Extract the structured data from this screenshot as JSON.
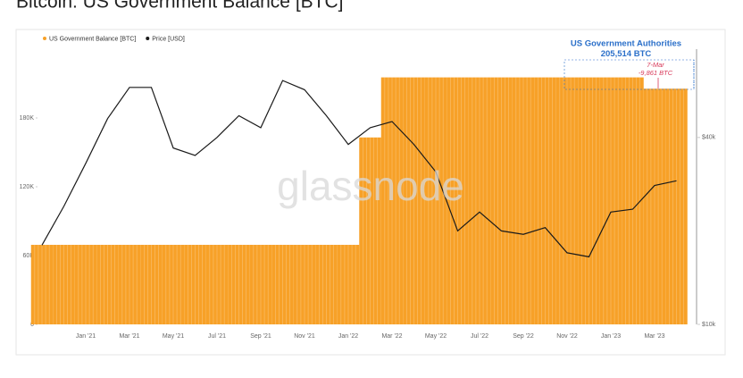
{
  "chart_data": {
    "type": "bar",
    "title": "Bitcoin: US Government Balance [BTC]",
    "watermark": "glassnode",
    "categories": [
      null,
      null,
      "Jan '21",
      null,
      "Mar '21",
      null,
      "May '21",
      null,
      "Jul '21",
      null,
      "Sep '21",
      null,
      "Nov '21",
      null,
      "Jan '22",
      null,
      "Mar '22",
      null,
      "May '22",
      null,
      "Jul '22",
      null,
      "Sep '22",
      null,
      "Nov '22",
      null,
      "Jan '23",
      null,
      "Mar '23",
      null
    ],
    "series": [
      {
        "name": "US Government Balance [BTC]",
        "type": "bar",
        "color": "#f7a128",
        "values": [
          69370,
          69370,
          69370,
          69370,
          69370,
          69370,
          69370,
          69370,
          69370,
          69370,
          69370,
          69370,
          69370,
          69370,
          69370,
          163000,
          215375,
          215375,
          215375,
          215375,
          215375,
          215375,
          215375,
          215375,
          215375,
          215375,
          215375,
          215375,
          205514,
          205514
        ]
      },
      {
        "name": "Price [USD]",
        "type": "line",
        "color": "#1a1a1a",
        "axis": "y2",
        "values": [
          18000,
          24000,
          33000,
          46000,
          58000,
          58000,
          37000,
          35000,
          40000,
          47000,
          43000,
          61000,
          57000,
          47000,
          38000,
          43000,
          45000,
          38000,
          31000,
          20000,
          23000,
          20000,
          19500,
          20500,
          17000,
          16500,
          23000,
          23500,
          28000,
          29000
        ]
      }
    ],
    "ylim": [
      0,
      240000
    ],
    "yticks": [
      0,
      {
        "value": 60000,
        "label": "60K"
      },
      {
        "value": 120000,
        "label": "120K"
      },
      {
        "value": 180000,
        "label": "180K"
      }
    ],
    "y2lim": [
      10000,
      77000
    ],
    "y2ticks": [
      {
        "value": 10000,
        "label": "$10k"
      },
      {
        "value": 40000,
        "label": "$40k"
      }
    ],
    "y2log": true,
    "grid": false,
    "legend": "top-left",
    "annotations": [
      {
        "title": "US Government Authorities",
        "text": "205,514 BTC",
        "color": "#2a6fc9"
      },
      {
        "title": "7-Mar",
        "text": "-9,861 BTC",
        "color": "#d83a5a"
      }
    ]
  }
}
